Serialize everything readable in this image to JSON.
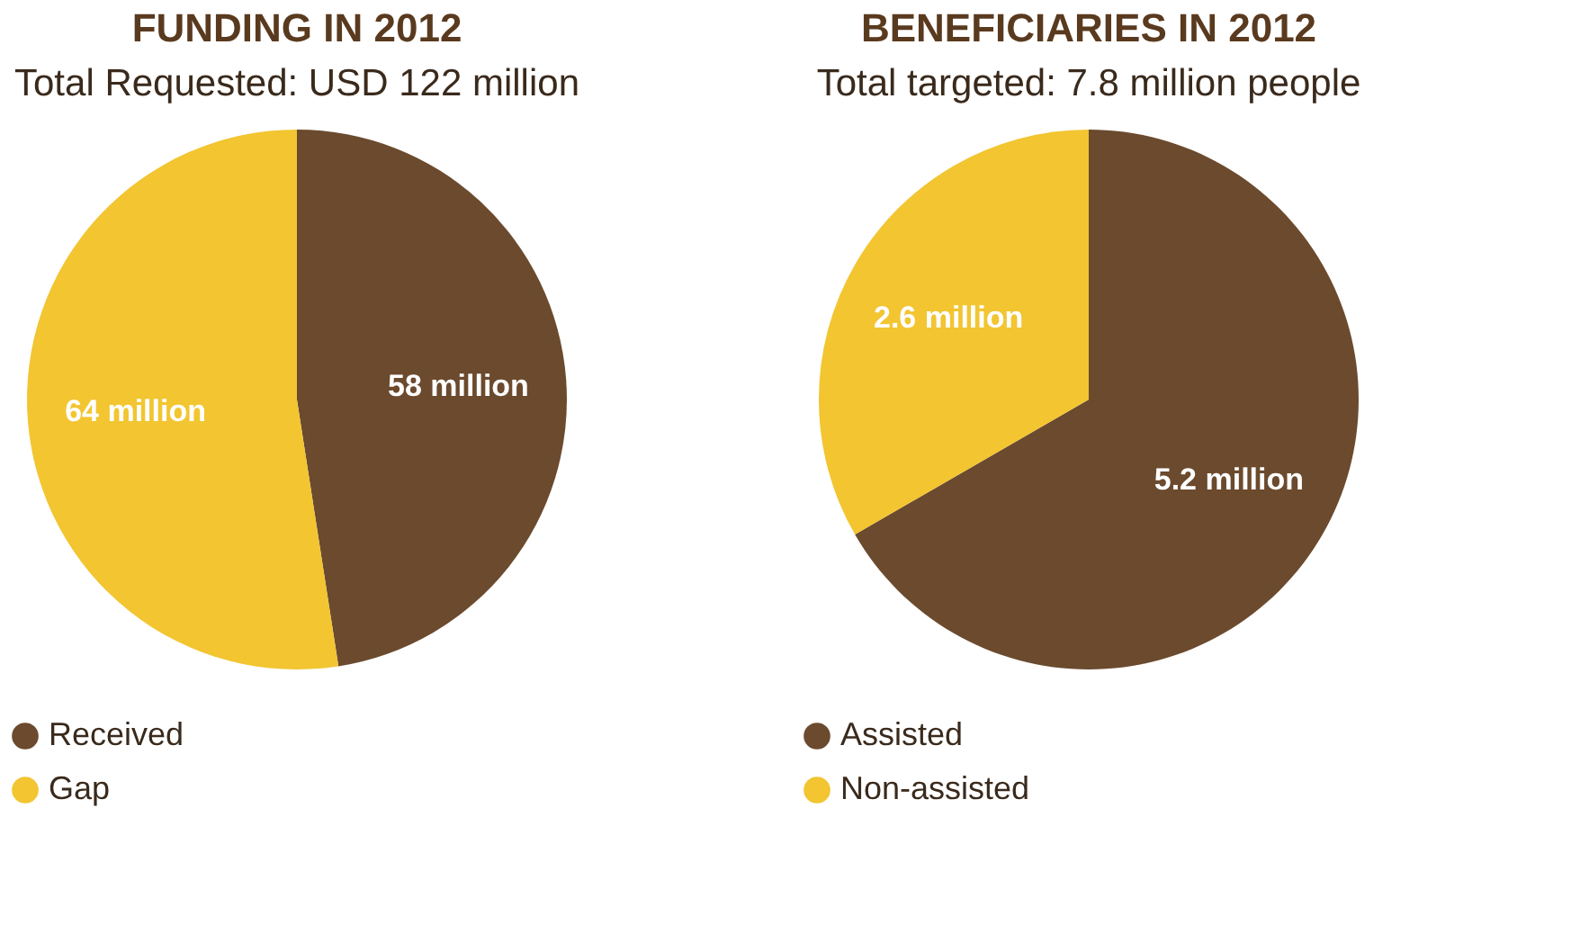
{
  "chart_data": [
    {
      "type": "pie",
      "title": "FUNDING IN 2012",
      "subtitle": "Total Requested: USD 122 million",
      "categories": [
        "Received",
        "Gap"
      ],
      "values": [
        58,
        64
      ],
      "value_labels": [
        "58 million",
        "64 million"
      ],
      "colors": [
        "#6b4a2e",
        "#f2c531"
      ],
      "legend": "bottom"
    },
    {
      "type": "pie",
      "title": "BENEFICIARIES IN 2012",
      "subtitle": "Total targeted: 7.8 million people",
      "categories": [
        "Assisted",
        "Non-assisted"
      ],
      "values": [
        5.2,
        2.6
      ],
      "value_labels": [
        "5.2 million",
        "2.6 million"
      ],
      "colors": [
        "#6b4a2e",
        "#f2c531"
      ],
      "legend": "bottom"
    }
  ]
}
